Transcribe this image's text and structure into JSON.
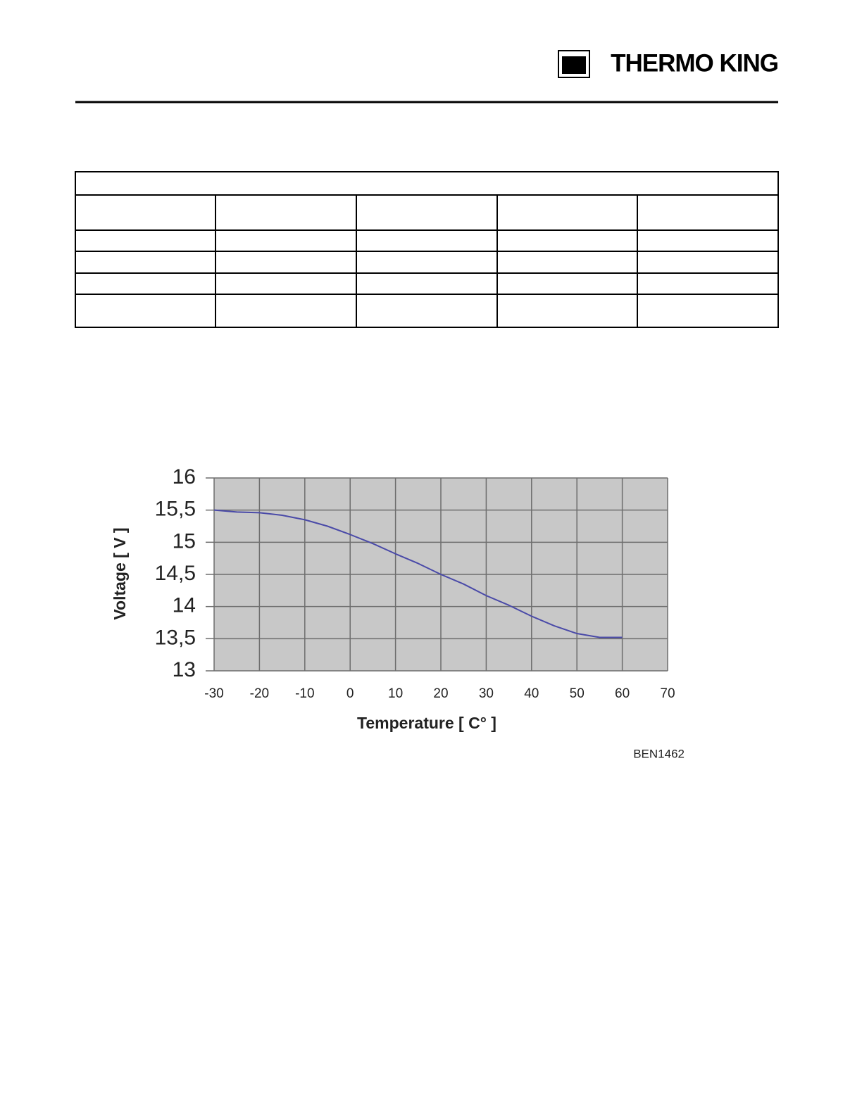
{
  "header": {
    "logo": "THERMO KING"
  },
  "figure_label": "BEN1462",
  "chart_data": {
    "type": "line",
    "xlabel": "Temperature [ C° ]",
    "ylabel": "Voltage [ V ]",
    "x": [
      -30,
      -25,
      -20,
      -15,
      -10,
      -5,
      0,
      5,
      10,
      15,
      20,
      25,
      30,
      35,
      40,
      45,
      50,
      55,
      60
    ],
    "values": [
      15.5,
      15.47,
      15.46,
      15.42,
      15.35,
      15.25,
      15.12,
      14.98,
      14.82,
      14.67,
      14.5,
      14.35,
      14.17,
      14.02,
      13.85,
      13.7,
      13.58,
      13.52,
      13.52
    ],
    "color": "#4a4aa8",
    "xlim": [
      -30,
      70
    ],
    "xticks": [
      -30,
      -20,
      -10,
      0,
      10,
      20,
      30,
      40,
      50,
      60,
      70
    ],
    "ylim": [
      13,
      16
    ],
    "yticks": [
      13,
      {
        "value": 13.5,
        "label": "13,5"
      },
      14,
      {
        "value": 14.5,
        "label": "14,5"
      },
      15,
      {
        "value": 15.5,
        "label": "15,5"
      },
      16
    ],
    "grid": true,
    "background": "#c8c8c8"
  }
}
